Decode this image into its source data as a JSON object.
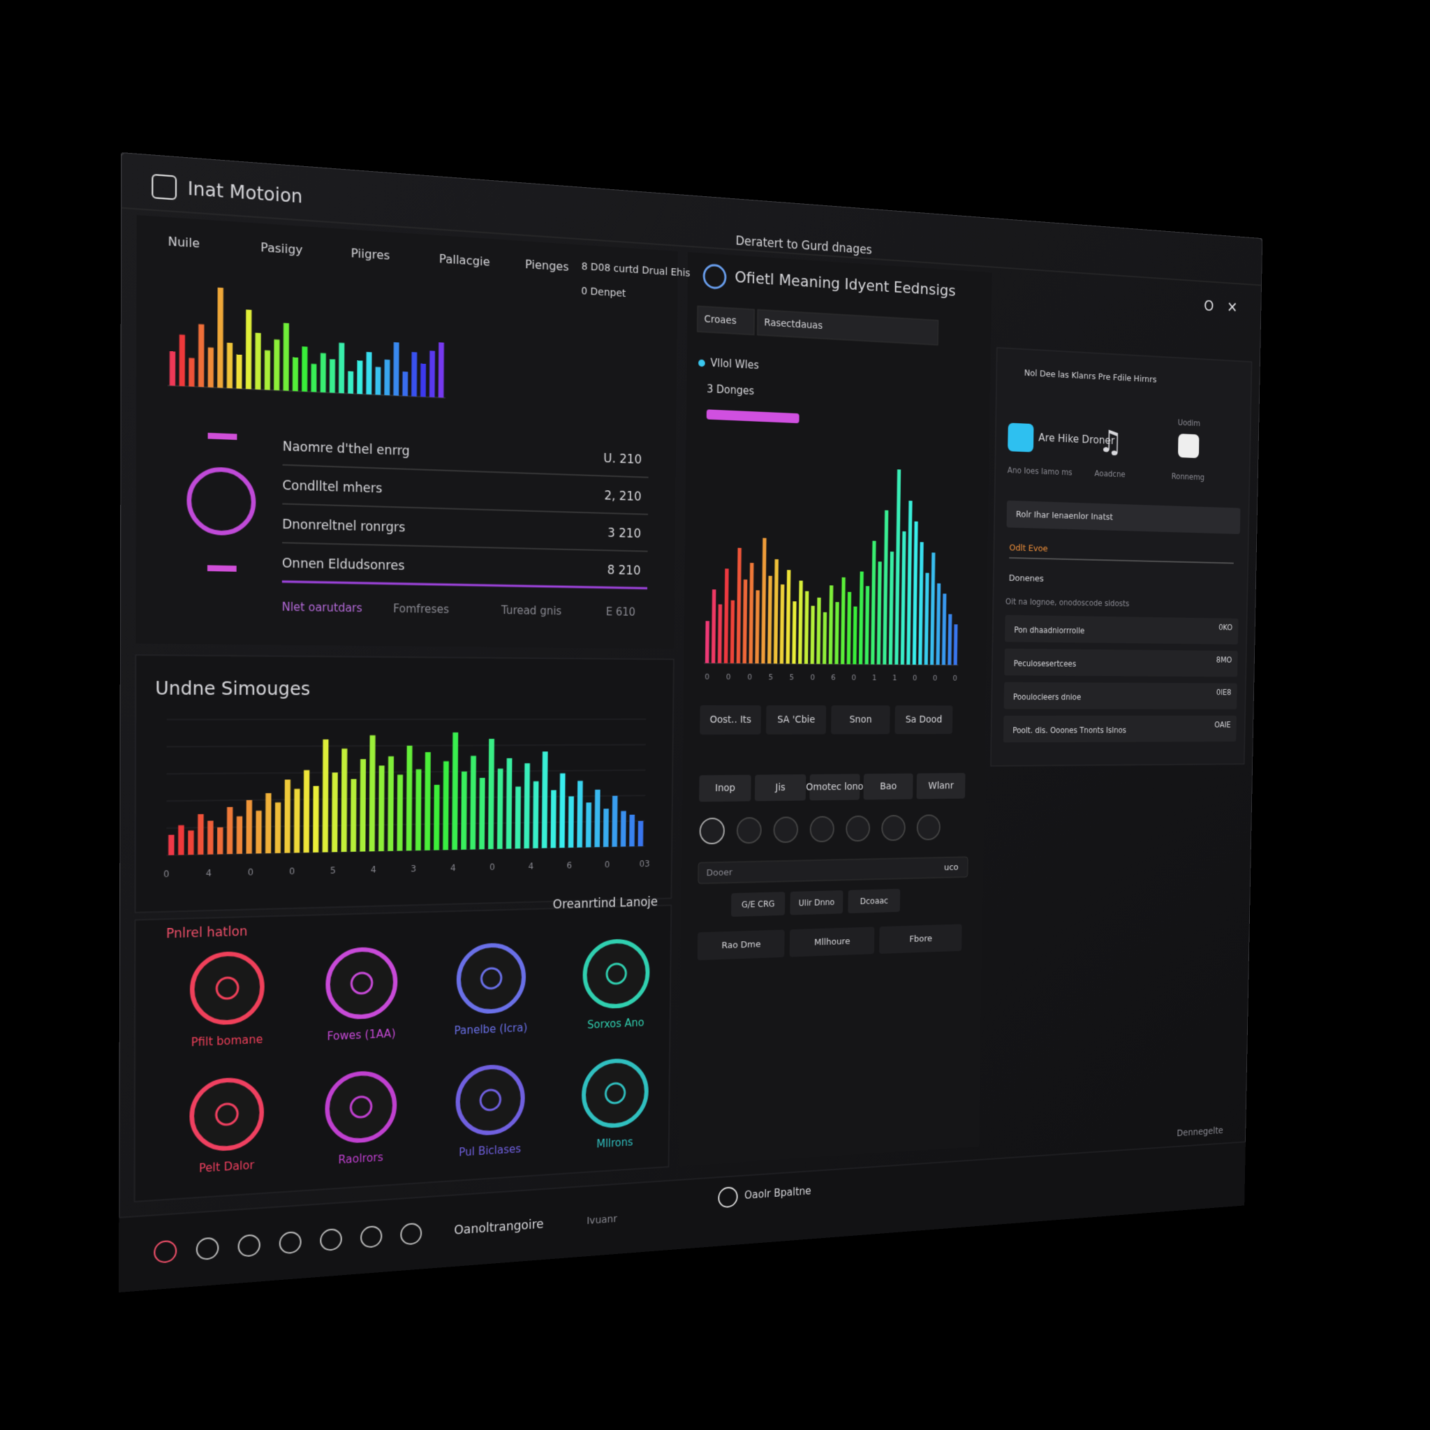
{
  "window": {
    "title": "Inat Motoion",
    "subtitle": "Deratert to Gurd dnages"
  },
  "top_chart": {
    "tabs": [
      "Nuile",
      "Pasiigy",
      "Piigres",
      "Pallacgie",
      "Pienges"
    ],
    "legend": [
      "8 D08 curtd Drual Ehis",
      "0 Denpet"
    ],
    "values": [
      30,
      45,
      25,
      55,
      35,
      88,
      40,
      30,
      70,
      50,
      35,
      45,
      60,
      30,
      40,
      25,
      35,
      30,
      45,
      20,
      30,
      38,
      25,
      32,
      48,
      22,
      40,
      30,
      42,
      50
    ]
  },
  "stats": {
    "rows": [
      {
        "label": "Naomre d'thel enrrg",
        "value": "U. 210"
      },
      {
        "label": "Condlltel mhers",
        "value": "2, 210"
      },
      {
        "label": "Dnonreltnel ronrgrs",
        "value": "3 210"
      },
      {
        "label": "Onnen Eldudsonres",
        "value": "8 210"
      }
    ],
    "footer": [
      "Nlet oarutdars",
      "Fomfreses",
      "Turead gnis",
      "E 610"
    ]
  },
  "spectrum_chart": {
    "title": "Undne Simouges",
    "xtick_labels": [
      "0",
      "4",
      "0",
      "0",
      "5",
      "4",
      "3",
      "4",
      "0",
      "4",
      "6",
      "0",
      "03"
    ],
    "values": [
      15,
      22,
      18,
      30,
      25,
      20,
      35,
      28,
      40,
      32,
      45,
      38,
      55,
      48,
      62,
      50,
      85,
      60,
      78,
      55,
      70,
      88,
      65,
      72,
      58,
      80,
      62,
      75,
      50,
      68,
      90,
      60,
      72,
      55,
      85,
      62,
      70,
      48,
      66,
      52,
      75,
      45,
      58,
      40,
      52,
      35,
      45,
      30,
      40,
      28,
      25,
      20
    ]
  },
  "apps": {
    "section": "Pnlrel hatlon",
    "title": "Oreanrtind Lanoje",
    "items": [
      "Pfilt bomane",
      "Fowes (1AA)",
      "Panelbe (Icra)",
      "Sorxos Ano",
      "Pelt Dalor",
      "Raolrors",
      "Pul Biclases",
      "Mllrons"
    ]
  },
  "center": {
    "title": "Ofietl Meaning Idyent Eednsigs",
    "tabs": [
      "Croaes",
      "Rasectdauas"
    ],
    "legend": "Vllol Wles",
    "subtitle": "3 Donges",
    "values": [
      20,
      35,
      28,
      45,
      30,
      55,
      40,
      48,
      35,
      60,
      42,
      50,
      38,
      45,
      30,
      40,
      35,
      28,
      32,
      25,
      38,
      30,
      42,
      35,
      28,
      45,
      38,
      60,
      50,
      75,
      55,
      95,
      65,
      80,
      70,
      60,
      45,
      55,
      40,
      35,
      25,
      20
    ],
    "xtick_labels": [
      "0",
      "0",
      "0",
      "5",
      "5",
      "0",
      "6",
      "0",
      "1",
      "1",
      "0",
      "0",
      "0"
    ],
    "buttons": [
      "Oost.. Its",
      "SA 'Cbie",
      "Snon",
      "Sa Dood"
    ],
    "toolbar": [
      "Inop",
      "Jis",
      "Omotec lono",
      "Bao",
      "Wlanr"
    ],
    "input": {
      "placeholder": "Dooer",
      "value": "uco"
    },
    "chips": [
      "G/E CRG",
      "Ulir Dnno",
      "Dcoaac"
    ],
    "footer_buttons": [
      "Rao Dme",
      "Mllhoure",
      "Fbore"
    ]
  },
  "right": {
    "header": "Nol Dee las Klanrs  Pre Fdile Hirnrs",
    "app": {
      "name": "Are Hike Droner",
      "caption": "Ano Ioes Iamo ms"
    },
    "music": "Aoadcne",
    "record": {
      "label": "Uodim",
      "caption": "Ronnemg"
    },
    "dropdown": "Rolr Ihar Ienaenlor Inatst",
    "field": "Odlt Evoe",
    "dropdown2": "Donenes",
    "list_heading": "Oit na Iognoe, onodoscode sidosts",
    "rows": [
      {
        "label": "Pon dhaadniorrrolle",
        "value": "0KO"
      },
      {
        "label": "Peculosesertcees",
        "value": "8MO"
      },
      {
        "label": "Pooulocieers dnioe",
        "value": "0lE8"
      },
      {
        "label": "Poolt. dis. Ooones Tnonts Islnos",
        "value": "OAIE"
      }
    ]
  },
  "taskbar": {
    "items": [
      "Oanoltrangoire",
      "Ivuanr",
      "Oaolr Bpaltne"
    ],
    "status": "Dennegelte"
  }
}
